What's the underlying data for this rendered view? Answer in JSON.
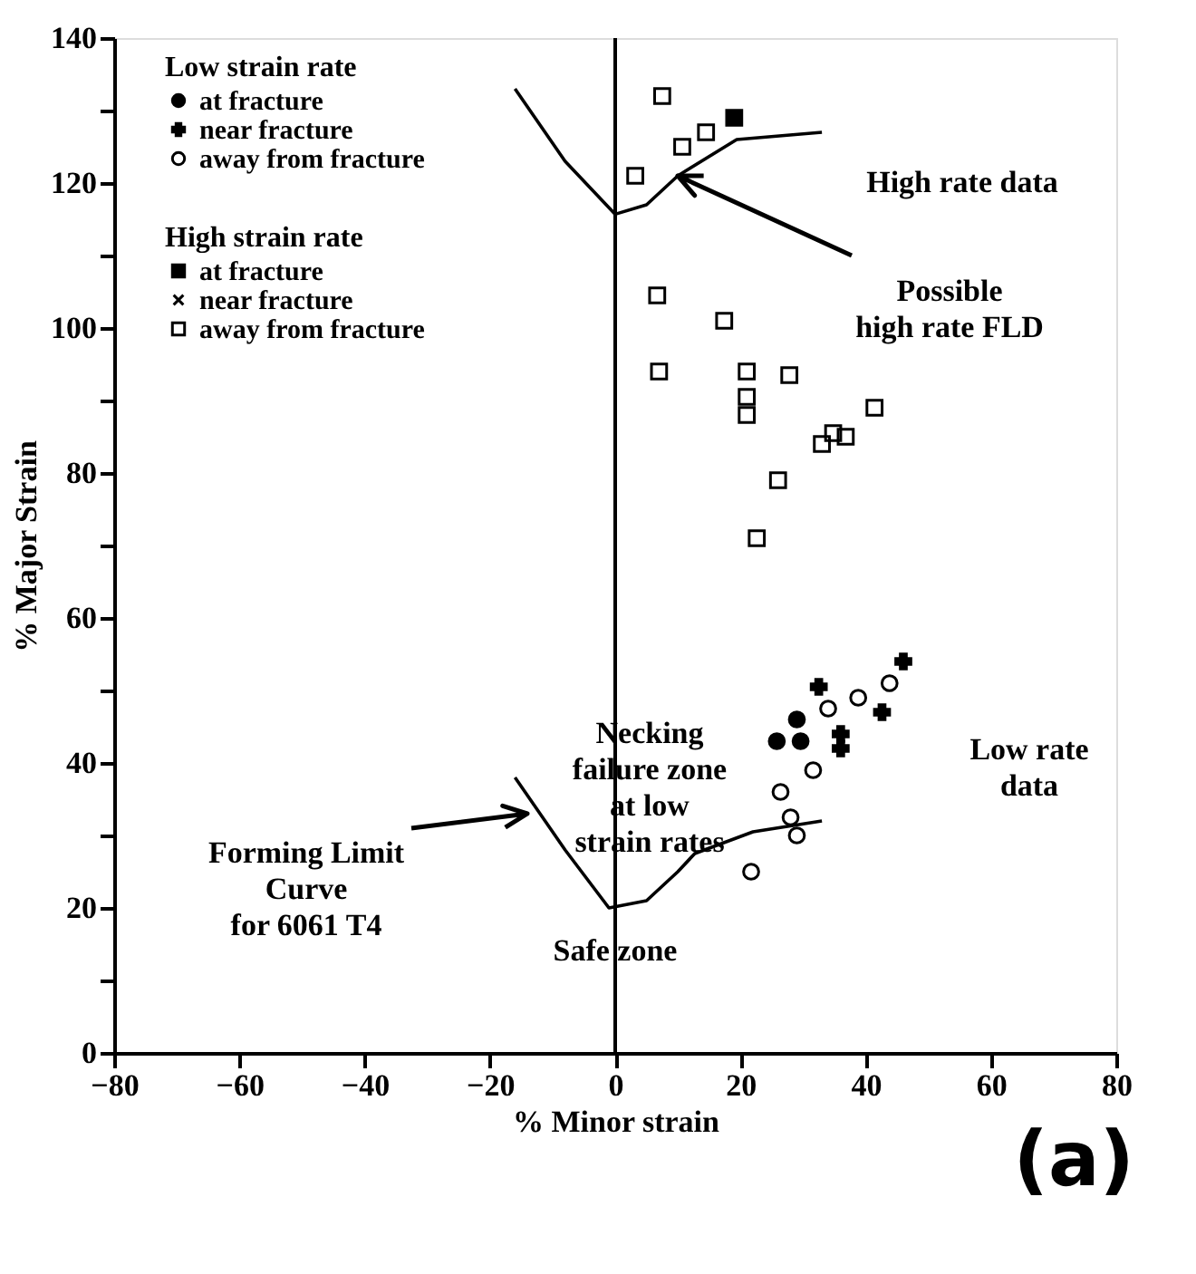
{
  "chart_data": {
    "type": "scatter",
    "xlabel": "% Minor strain",
    "ylabel": "% Major Strain",
    "xlim": [
      -80,
      80
    ],
    "ylim": [
      0,
      140
    ],
    "xticks": [
      -80,
      -60,
      -40,
      -20,
      0,
      20,
      40,
      60,
      80
    ],
    "yticks": [
      0,
      {
        "value": 10,
        "label": null
      },
      20,
      {
        "value": 30,
        "label": null
      },
      40,
      {
        "value": 50,
        "label": null
      },
      60,
      {
        "value": 70,
        "label": null
      },
      80,
      {
        "value": 90,
        "label": null
      },
      100,
      {
        "value": 110,
        "label": null
      },
      120,
      {
        "value": 130,
        "label": null
      },
      140
    ],
    "legend": "top left",
    "legend_title": [
      "Low strain rate",
      "High strain rate"
    ],
    "series": [
      {
        "name": "at fracture",
        "marker": "circle",
        "color": "#000000",
        "x": [
          29,
          25.8,
          29.6
        ],
        "values": [
          46,
          43,
          43
        ]
      },
      {
        "name": "near fracture",
        "marker": "cross",
        "color": "#000000",
        "x": [
          32.5,
          46,
          42.6,
          36,
          36
        ],
        "values": [
          50.5,
          54,
          47,
          44,
          42
        ]
      },
      {
        "name": "away from fracture",
        "marker": "circle",
        "color": "#000000",
        "x": [
          34,
          38.8,
          43.8,
          31.6,
          26.4,
          28,
          29,
          21.7
        ],
        "values": [
          47.5,
          49,
          51,
          39,
          36,
          32.5,
          30,
          25
        ]
      },
      {
        "name": "at fracture",
        "marker": "square",
        "color": "#000000",
        "x": [
          19
        ],
        "values": [
          129
        ]
      },
      {
        "name": "near fracture",
        "marker": "x",
        "color": "#000000"
      },
      {
        "name": "away from fracture",
        "marker": "square",
        "color": "#000000",
        "x": [
          7.5,
          10.7,
          14.5,
          3.2,
          6.7,
          17.4,
          7,
          21,
          21,
          21,
          27.8,
          41.4,
          33,
          34.8,
          36.8,
          26,
          22.6
        ],
        "values": [
          132,
          125,
          127,
          121,
          104.5,
          101,
          94,
          94,
          90.5,
          88,
          93.5,
          89,
          84,
          85.5,
          85,
          79,
          71
        ]
      },
      {
        "type": "line",
        "color": "#000000",
        "x": [
          -16,
          -8,
          0,
          5,
          10,
          19.4,
          33
        ],
        "values": [
          133,
          123,
          115.7,
          117,
          121,
          126,
          127
        ]
      },
      {
        "type": "line",
        "color": "#000000",
        "x": [
          -16,
          -8,
          -1,
          5,
          10,
          12.7,
          22,
          33
        ],
        "values": [
          38,
          28,
          20,
          21,
          25,
          27.5,
          30.5,
          32
        ]
      }
    ],
    "ref_lines": [
      {
        "axis": "x",
        "value": 0,
        "color": "#000000"
      }
    ],
    "annotations": [
      "High rate data",
      "Possible\nhigh rate FLD",
      {
        "text": "Necking\nfailure zone\nat low\nstrain rates",
        "x": 0,
        "y": 44
      },
      "Low rate\ndata",
      "Forming Limit\nCurve\nfor 6061 T4",
      {
        "text": "Safe zone",
        "x": 0,
        "y": 14
      },
      "(a)"
    ]
  }
}
